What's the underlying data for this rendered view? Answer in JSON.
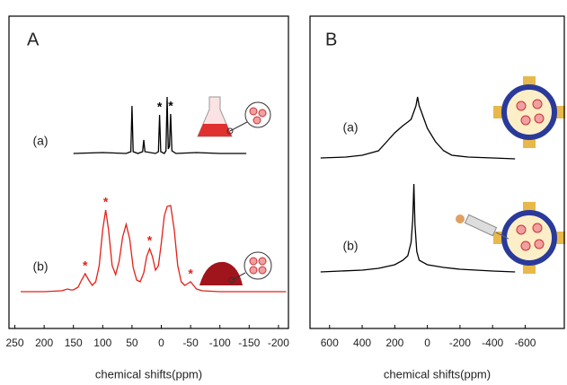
{
  "chart_data": [
    {
      "type": "line",
      "panel": "A",
      "xlabel": "chemical shifts(ppm)",
      "xlim": [
        260,
        -217
      ],
      "xticks": [
        250,
        200,
        150,
        100,
        50,
        0,
        -50,
        -100,
        -150,
        -200
      ],
      "series": [
        {
          "name": "(a)",
          "color": "#000000",
          "x": [
            150,
            100,
            60,
            52,
            50,
            48,
            40,
            32,
            30,
            28,
            10,
            5,
            3,
            1,
            -5,
            -8,
            -10,
            -12,
            -14,
            -16,
            -18,
            -25,
            -60,
            -100,
            -145
          ],
          "values": [
            0,
            0.01,
            0,
            0.02,
            0.53,
            0.02,
            0,
            0.02,
            0.15,
            0.02,
            0,
            0.02,
            0.43,
            0.02,
            0,
            0.03,
            0.63,
            0.05,
            0.08,
            0.44,
            0.03,
            0,
            0.01,
            0,
            0
          ],
          "markers": [
            {
              "label": "*",
              "x": 3
            },
            {
              "label": "*",
              "x": -16
            }
          ]
        },
        {
          "name": "(b)",
          "color": "#e32119",
          "x": [
            240,
            200,
            170,
            165,
            160,
            155,
            150,
            142,
            136,
            130,
            124,
            118,
            112,
            106,
            100,
            95,
            90,
            84,
            78,
            72,
            66,
            60,
            54,
            48,
            42,
            36,
            30,
            25,
            20,
            15,
            10,
            5,
            0,
            -5,
            -10,
            -16,
            -22,
            -28,
            -34,
            -40,
            -45,
            -50,
            -55,
            -60,
            -70,
            -100,
            -150,
            -213
          ],
          "values": [
            0.01,
            0.01,
            0.02,
            0.03,
            0.04,
            0.03,
            0.03,
            0.06,
            0.14,
            0.21,
            0.14,
            0.08,
            0.12,
            0.3,
            0.7,
            0.92,
            0.7,
            0.3,
            0.2,
            0.35,
            0.62,
            0.76,
            0.6,
            0.28,
            0.14,
            0.12,
            0.22,
            0.4,
            0.49,
            0.4,
            0.25,
            0.3,
            0.55,
            0.85,
            0.96,
            0.97,
            0.7,
            0.3,
            0.12,
            0.08,
            0.1,
            0.12,
            0.08,
            0.04,
            0.02,
            0.01,
            0.01,
            0.01
          ],
          "markers": [
            {
              "label": "*",
              "x": 130
            },
            {
              "label": "*",
              "x": 95
            },
            {
              "label": "*",
              "x": 20
            },
            {
              "label": "*",
              "x": -50
            }
          ]
        }
      ]
    },
    {
      "type": "line",
      "panel": "B",
      "xlabel": "chemical shifts(ppm)",
      "xlim": [
        720,
        -840
      ],
      "xticks": [
        600,
        400,
        200,
        0,
        -200,
        -400,
        -600
      ],
      "series": [
        {
          "name": "(a)",
          "color": "#000000",
          "x": [
            655,
            500,
            400,
            300,
            250,
            200,
            150,
            120,
            100,
            80,
            70,
            60,
            50,
            40,
            20,
            0,
            -50,
            -100,
            -150,
            -250,
            -400,
            -538
          ],
          "values": [
            0.02,
            0.03,
            0.05,
            0.1,
            0.2,
            0.3,
            0.38,
            0.42,
            0.45,
            0.55,
            0.6,
            0.7,
            0.6,
            0.55,
            0.45,
            0.35,
            0.2,
            0.1,
            0.05,
            0.03,
            0.02,
            0.01
          ]
        },
        {
          "name": "(b)",
          "color": "#000000",
          "x": [
            655,
            400,
            300,
            200,
            150,
            120,
            100,
            90,
            83,
            76,
            65,
            50,
            0,
            -100,
            -200,
            -400,
            -538
          ],
          "values": [
            0.02,
            0.04,
            0.06,
            0.1,
            0.15,
            0.2,
            0.35,
            0.6,
            1.0,
            0.55,
            0.25,
            0.15,
            0.1,
            0.07,
            0.05,
            0.03,
            0.02
          ]
        }
      ]
    }
  ]
}
